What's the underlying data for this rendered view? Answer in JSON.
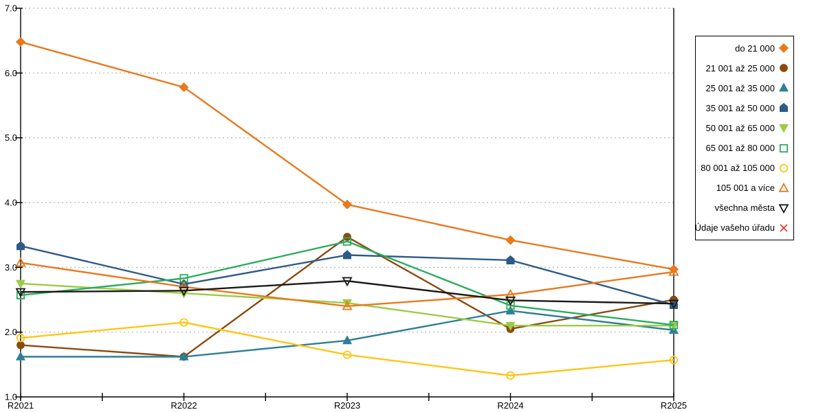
{
  "chart": {
    "background": "#FFFFFF",
    "axis_color": "#000000",
    "gridline_color": "#B3B3B3",
    "text_color": "#000000"
  },
  "chart_data": {
    "type": "line",
    "title": "",
    "xlabel": "",
    "ylabel": "",
    "x_categories": [
      "R2021",
      "R2022",
      "R2023",
      "R2024",
      "R2025"
    ],
    "y_tick_labels": [
      "7.0",
      "6.0",
      "5.0",
      "4.0",
      "3.0",
      "2.0",
      "1.0"
    ],
    "ylim": [
      1.0,
      7.0
    ],
    "grid": "horizontal dashed at each integer",
    "legend_position": "right, bordered box",
    "series": [
      {
        "name": "do 21 000",
        "color": "#E8791D",
        "marker": "diamond",
        "fill": "filled",
        "values": [
          6.48,
          5.78,
          3.97,
          3.42,
          2.97
        ]
      },
      {
        "name": "21 001 až 25 000",
        "color": "#8C4A10",
        "marker": "circle",
        "fill": "filled",
        "values": [
          1.8,
          1.62,
          3.47,
          2.05,
          2.5
        ]
      },
      {
        "name": "25 001 až 35 000",
        "color": "#2E7F96",
        "marker": "triangle-up",
        "fill": "filled",
        "values": [
          1.62,
          1.62,
          1.87,
          2.33,
          2.03
        ]
      },
      {
        "name": "35 001 až 50 000",
        "color": "#2F5B88",
        "marker": "pentagon",
        "fill": "filled",
        "values": [
          3.33,
          2.74,
          3.19,
          3.11,
          2.42
        ]
      },
      {
        "name": "50 001 až 65 000",
        "color": "#9CCB45",
        "marker": "triangle-down",
        "fill": "filled",
        "values": [
          2.75,
          2.6,
          2.45,
          2.1,
          2.1
        ]
      },
      {
        "name": "65 001 až 80 000",
        "color": "#2BAC5C",
        "marker": "square",
        "fill": "open",
        "values": [
          2.57,
          2.83,
          3.4,
          2.41,
          2.11
        ]
      },
      {
        "name": "80 001 až 105 000",
        "color": "#FFC516",
        "marker": "circle",
        "fill": "open",
        "values": [
          1.91,
          2.15,
          1.65,
          1.33,
          1.57
        ]
      },
      {
        "name": "105 001 a více",
        "color": "#E8791D",
        "marker": "triangle-up",
        "fill": "open",
        "values": [
          3.07,
          2.7,
          2.4,
          2.58,
          2.93
        ]
      },
      {
        "name": "všechna města",
        "color": "#1A1A1A",
        "marker": "triangle-down",
        "fill": "open",
        "values": [
          2.62,
          2.64,
          2.79,
          2.49,
          2.44
        ]
      },
      {
        "name": "Údaje vašeho úřadu",
        "color": "#E0301E",
        "marker": "x",
        "fill": "open",
        "values": []
      }
    ]
  }
}
